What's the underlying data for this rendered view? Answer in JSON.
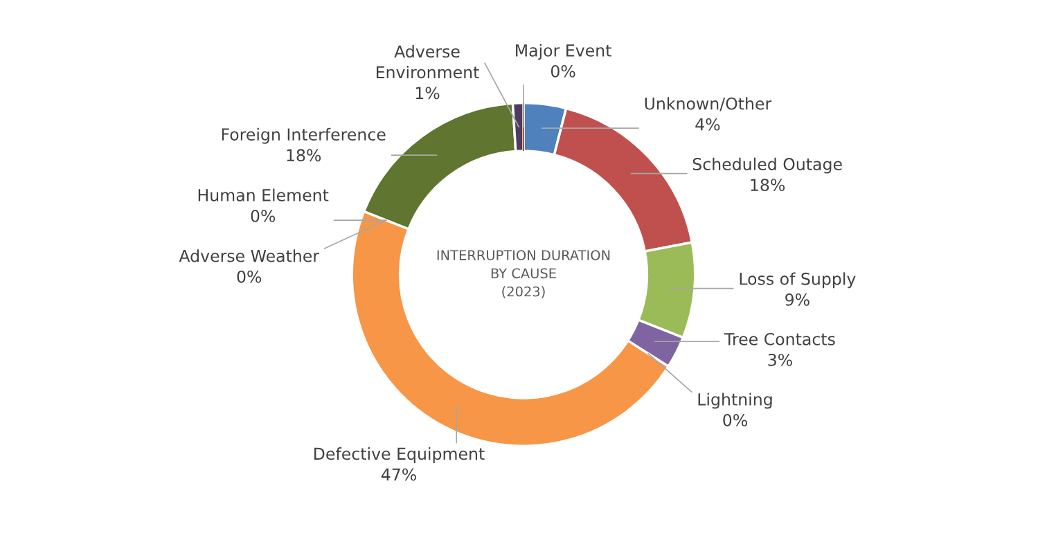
{
  "chart_data": {
    "type": "donut",
    "title": "INTERRUPTION DURATION\nBY CAUSE\n(2023)",
    "categories": [
      "Unknown/Other",
      "Scheduled Outage",
      "Loss of Supply",
      "Tree Contacts",
      "Lightning",
      "Defective Equipment",
      "Adverse Weather",
      "Human Element",
      "Foreign Interference",
      "Adverse Environment",
      "Major Event"
    ],
    "values": [
      4,
      18,
      9,
      3,
      0,
      47,
      0,
      0,
      18,
      1,
      0
    ],
    "value_labels": [
      "4%",
      "18%",
      "9%",
      "3%",
      "0%",
      "47%",
      "0%",
      "0%",
      "18%",
      "1%",
      "0%"
    ],
    "colors": [
      "#4f81bd",
      "#c0504d",
      "#9bbb59",
      "#8064a2",
      "#4bacc6",
      "#f79646",
      "#2c4d75",
      "#772c2a",
      "#5f7530",
      "#4d3b62",
      "#b65708"
    ],
    "legend": false
  }
}
